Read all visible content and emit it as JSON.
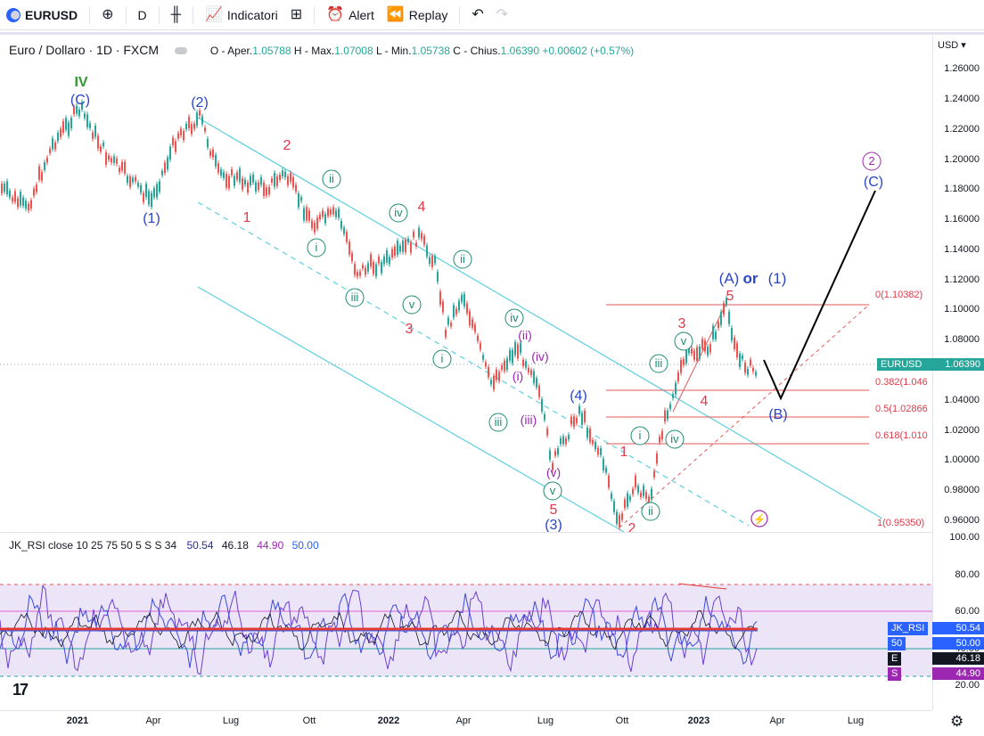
{
  "toolbar": {
    "symbol": "EURUSD",
    "add_symbol_icon": "plus-circle-icon",
    "interval": "D",
    "indicators_label": "Indicatori",
    "alert_label": "Alert",
    "replay_label": "Replay"
  },
  "legend": {
    "title": "Euro / Dollaro · 1D · FXCM",
    "open_label": "O - Aper.",
    "open": "1.05788",
    "high_label": "H - Max.",
    "high": "1.07008",
    "low_label": "L - Min.",
    "low": "1.05738",
    "close_label": "C - Chius.",
    "close": "1.06390",
    "change": "+0.00602",
    "change_pct": "(+0.57%)"
  },
  "rsi_legend": {
    "name": "JK_RSI",
    "params": "close 10 25 75 50 5 S S 34",
    "v1": "50.54",
    "v2": "46.18",
    "v3": "44.90",
    "v4": "50.00"
  },
  "price_scale": {
    "currency": "USD",
    "labels": [
      "1.26000",
      "1.24000",
      "1.22000",
      "1.20000",
      "1.18000",
      "1.16000",
      "1.14000",
      "1.12000",
      "1.10000",
      "1.08000",
      "1.04000",
      "1.02000",
      "1.00000",
      "0.98000",
      "0.96000"
    ],
    "current_symbol": "EURUSD",
    "current_price": "1.06390"
  },
  "rsi_scale": {
    "labels": [
      "100.00",
      "80.00",
      "60.00",
      "40.00",
      "20.00"
    ],
    "tags": [
      {
        "name": "JK_RSI",
        "value": "50.54",
        "color": "#2962ff"
      },
      {
        "name": "50",
        "value": "50.00",
        "color": "#2962ff"
      },
      {
        "name": "E",
        "value": "46.18",
        "color": "#131722"
      },
      {
        "name": "S",
        "value": "44.90",
        "color": "#9c27b0"
      }
    ]
  },
  "time_axis": [
    "2021",
    "Apr",
    "Lug",
    "Ott",
    "2022",
    "Apr",
    "Lug",
    "Ott",
    "2023",
    "Apr",
    "Lug"
  ],
  "fib_labels": [
    "0(1.10382)",
    "0.382(1.046",
    "0.5(1.02866",
    "0.618(1.010",
    "1(0.95350)"
  ],
  "wave_labels": {
    "IV": "IV",
    "C_big": "(C)",
    "two_paren": "(2)",
    "one_paren": "(1)",
    "r2": "2",
    "r1": "1",
    "r4": "4",
    "r3": "3",
    "r5": "5",
    "r1b": "1",
    "r2b": "2",
    "ii_a": "ii",
    "i_a": "i",
    "iii_a": "iii",
    "iv_a": "iv",
    "v_a": "v",
    "ii_b": "ii",
    "i_b": "i",
    "iii_b": "iii",
    "iv_b": "iv",
    "v_b": "v",
    "p_i": "(i)",
    "p_ii": "(ii)",
    "p_iii": "(iii)",
    "p_iv": "(iv)",
    "p_v": "(v)",
    "four_paren": "(4)",
    "three_paren": "(3)",
    "i_c": "i",
    "ii_c": "ii",
    "iii_c": "iii",
    "iv_c": "iv",
    "v_c": "v",
    "r3b": "3",
    "r4b": "4",
    "r5b": "5",
    "A_or_1_a": "(A)",
    "A_or_1_or": "or",
    "A_or_1_b": "(1)",
    "B": "(B)",
    "two_circ": "2",
    "C_target": "(C)"
  },
  "colors": {
    "up": "#26a69a",
    "down": "#ef5350",
    "wave_blue": "#2a46c7",
    "wave_red": "#e03a4a",
    "wave_green": "#1b8a73",
    "wave_purple": "#9c27b0",
    "channel": "#5ecfe0",
    "rsi_bg": "#ece5f8"
  }
}
